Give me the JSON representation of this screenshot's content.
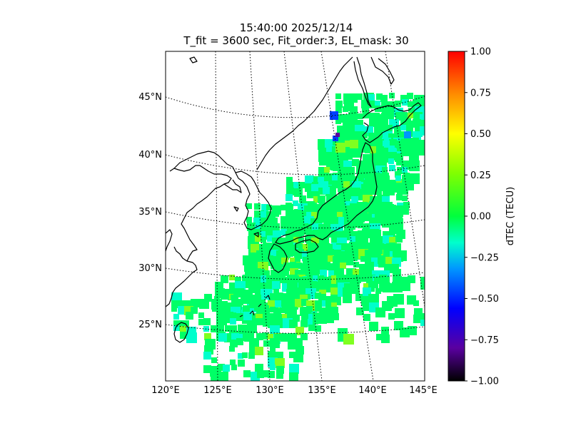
{
  "title": {
    "line1": "15:40:00 2025/12/14",
    "line2": "T_fit = 3600 sec, Fit_order:3, EL_mask: 30"
  },
  "map": {
    "lat_labels": [
      "45°N",
      "40°N",
      "35°N",
      "30°N",
      "25°N"
    ],
    "lon_labels": [
      "120°E",
      "125°E",
      "130°E",
      "135°E",
      "140°E",
      "145°E"
    ],
    "lon_range": [
      120,
      145
    ],
    "lat_range": [
      20,
      49
    ],
    "graticule": "dotted"
  },
  "colorbar": {
    "label": "dTEC (TECU)",
    "ticks": [
      "1.00",
      "0.75",
      "0.50",
      "0.25",
      "0.00",
      "−0.25",
      "−0.50",
      "−0.75",
      "−1.00"
    ],
    "range": [
      -1.0,
      1.0
    ],
    "colormap": "nipy_spectral-like",
    "colors": [
      "#ff0000",
      "#ff8c00",
      "#ffff00",
      "#a6ff00",
      "#00ff3c",
      "#00ffcc",
      "#0096ff",
      "#0000ff",
      "#5a00a0",
      "#000000"
    ]
  },
  "data_colors": {
    "dominant": "#00ff66",
    "secondary": "#00ffcc",
    "positive": "#80ff20",
    "negative": "#0040ff"
  }
}
